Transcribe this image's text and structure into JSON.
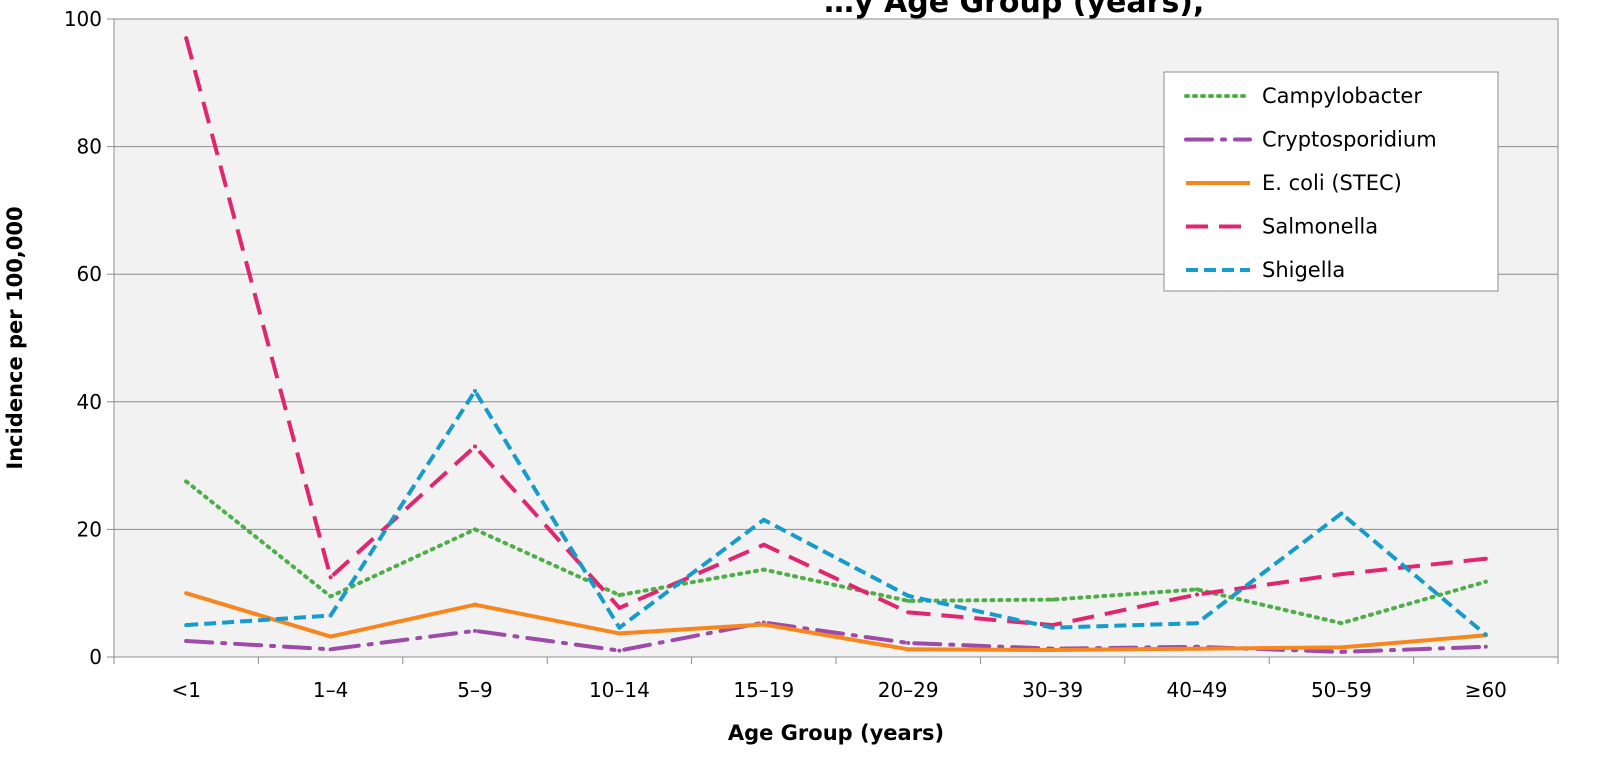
{
  "chart_data": {
    "type": "line",
    "title": "…y Age Group (years),",
    "xlabel": "Age Group (years)",
    "ylabel": "Incidence per 100,000",
    "ylim": [
      0,
      100
    ],
    "yticks": [
      0,
      20,
      40,
      60,
      80,
      100
    ],
    "grid": true,
    "legend_position": "top-right",
    "categories": [
      "<1",
      "1–4",
      "5–9",
      "10–14",
      "15–19",
      "20–29",
      "30–39",
      "40–49",
      "50–59",
      "≥60"
    ],
    "series": [
      {
        "name": "Campylobacter",
        "color": "#4fae4a",
        "style": "dotted",
        "values": [
          27.5,
          9.5,
          20.0,
          9.7,
          13.7,
          8.8,
          9.0,
          10.6,
          5.3,
          11.8
        ]
      },
      {
        "name": "Cryptosporidium",
        "color": "#9d4aa8",
        "style": "dash-dot",
        "values": [
          2.5,
          1.2,
          4.1,
          1.0,
          5.4,
          2.2,
          1.3,
          1.6,
          0.8,
          1.6
        ]
      },
      {
        "name": "E. coli (STEC)",
        "color": "#f7861e",
        "style": "solid",
        "values": [
          10.0,
          3.2,
          8.2,
          3.7,
          5.1,
          1.2,
          1.1,
          1.3,
          1.5,
          3.4
        ]
      },
      {
        "name": "Salmonella",
        "color": "#e0266f",
        "style": "dashed",
        "values": [
          97.0,
          12.5,
          33.0,
          7.7,
          17.6,
          7.0,
          5.0,
          9.8,
          13.0,
          15.4
        ]
      },
      {
        "name": "Shigella",
        "color": "#159ccc",
        "style": "short-dashed",
        "values": [
          5.0,
          6.5,
          41.7,
          4.6,
          21.5,
          9.6,
          4.6,
          5.3,
          22.5,
          3.5
        ]
      }
    ]
  }
}
